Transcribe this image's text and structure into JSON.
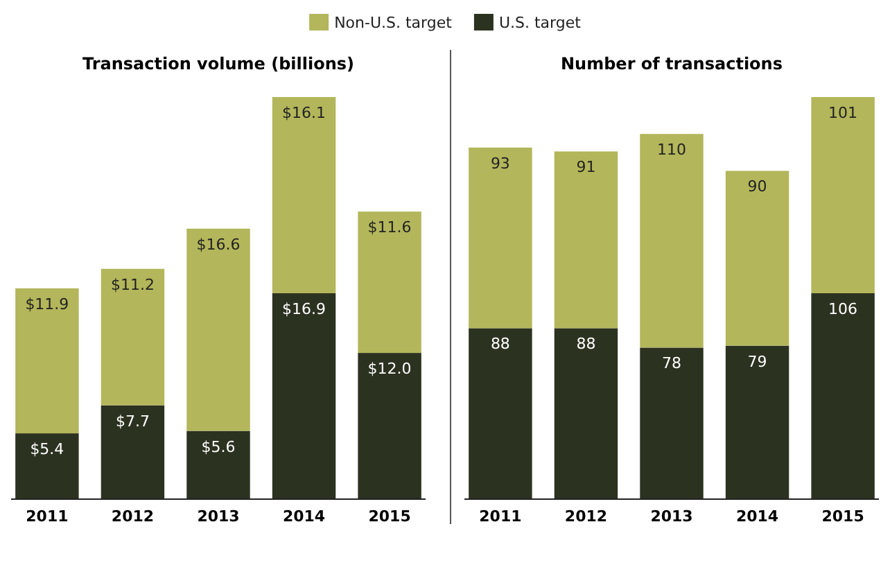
{
  "chart_data": [
    {
      "type": "bar",
      "title": "Transaction volume (billions)",
      "stacked": true,
      "legend": "top",
      "categories": [
        "2011",
        "2012",
        "2013",
        "2014",
        "2015"
      ],
      "series": [
        {
          "name": "U.S. target",
          "color": "#2c3220",
          "values": [
            5.4,
            7.7,
            5.6,
            16.9,
            12.0
          ],
          "value_labels": [
            "$5.4",
            "$7.7",
            "$5.6",
            "$16.9",
            "$12.0"
          ]
        },
        {
          "name": "Non-U.S. target",
          "color": "#b3b65a",
          "values": [
            11.9,
            11.2,
            16.6,
            16.1,
            11.6
          ],
          "value_labels": [
            "$11.9",
            "$11.2",
            "$16.6",
            "$16.1",
            "$11.6"
          ]
        }
      ]
    },
    {
      "type": "bar",
      "title": "Number of transactions",
      "stacked": true,
      "data_labels": true,
      "categories": [
        "2011",
        "2012",
        "2013",
        "2014",
        "2015"
      ],
      "series": [
        {
          "color": "#2c3220",
          "values": [
            88,
            88,
            78,
            79,
            106
          ]
        },
        {
          "color": "#b3b65a",
          "values": [
            93,
            91,
            110,
            90,
            101
          ]
        }
      ]
    }
  ]
}
